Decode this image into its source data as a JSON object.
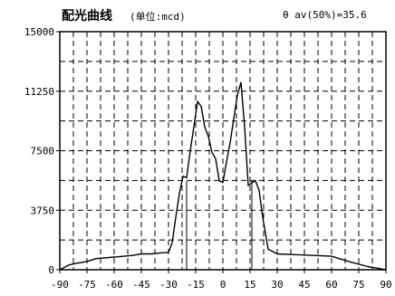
{
  "chart_data": {
    "type": "line",
    "title": "配光曲线",
    "unit_label": "(单位:mcd)",
    "annotation": "θ av(50%)=35.6",
    "grid": true,
    "xlim": [
      -90,
      90
    ],
    "ylim": [
      0,
      15000
    ],
    "x_ticks": [
      -90,
      -75,
      -60,
      -45,
      -30,
      -15,
      0,
      15,
      30,
      45,
      60,
      75,
      90
    ],
    "x_tick_labels": [
      "-90",
      "-75",
      "-60",
      "-45",
      "-30",
      "-15",
      "0",
      "15",
      "30",
      "45",
      "60",
      "75",
      "90"
    ],
    "y_ticks": [
      0,
      3750,
      7500,
      11250,
      15000
    ],
    "y_tick_labels": [
      "0",
      "3750",
      "7500",
      "11250",
      "15000"
    ],
    "minor_x_gridlines": [
      -82.5,
      -67.5,
      -52.5,
      -37.5,
      -22.5,
      -7.5,
      7.5,
      22.5,
      37.5,
      52.5,
      67.5,
      82.5
    ],
    "minor_y_gridlines": [
      1875,
      5625,
      9375,
      13125
    ],
    "half_intensity_markers": [
      -20,
      16
    ],
    "series": [
      {
        "x": [
          -90,
          -85,
          -80,
          -75,
          -70,
          -60,
          -50,
          -45,
          -40,
          -35,
          -30,
          -28,
          -26,
          -24,
          -22,
          -20,
          -18,
          -16,
          -14,
          -12,
          -10,
          -8,
          -6,
          -4,
          -2,
          0,
          2,
          4,
          6,
          8,
          10,
          12,
          14,
          16,
          18,
          20,
          22,
          25,
          30,
          40,
          50,
          60,
          70,
          80,
          85,
          90
        ],
        "y": [
          0,
          300,
          420,
          520,
          700,
          800,
          900,
          1000,
          1000,
          1050,
          1100,
          1700,
          3300,
          4800,
          5900,
          5800,
          7500,
          9000,
          10600,
          10300,
          9000,
          8400,
          7400,
          7000,
          5600,
          5500,
          6800,
          8000,
          9500,
          11000,
          11800,
          9000,
          5300,
          5500,
          5600,
          5000,
          3300,
          1300,
          1000,
          950,
          900,
          850,
          500,
          200,
          100,
          0
        ]
      }
    ]
  }
}
